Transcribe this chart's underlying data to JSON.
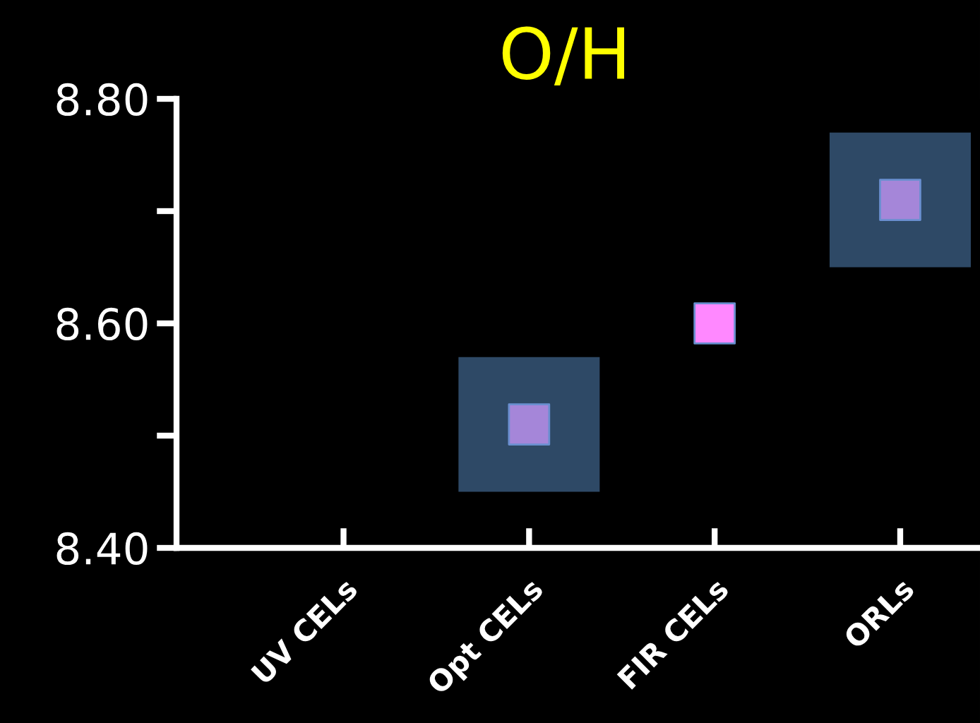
{
  "chart_data": {
    "type": "scatter",
    "title": "O/H",
    "categories": [
      "UV CELs",
      "Opt CELs",
      "FIR CELs",
      "ORLs"
    ],
    "values": [
      null,
      8.51,
      8.6,
      8.71
    ],
    "colors": [
      "#a586d9",
      "#a586d9",
      "#ff88ff",
      "#a586d9"
    ],
    "errors": [
      null,
      [
        8.45,
        8.57
      ],
      null,
      [
        8.65,
        8.77
      ]
    ],
    "marker": "square",
    "ylim": [
      8.4,
      8.8
    ],
    "yticks": [
      {
        "value": 8.4,
        "label": "8.40"
      },
      {
        "value": 8.5,
        "label": null
      },
      {
        "value": 8.6,
        "label": "8.60"
      },
      {
        "value": 8.7,
        "label": null
      },
      {
        "value": 8.8,
        "label": "8.80"
      }
    ],
    "grid": false,
    "legend": false
  }
}
